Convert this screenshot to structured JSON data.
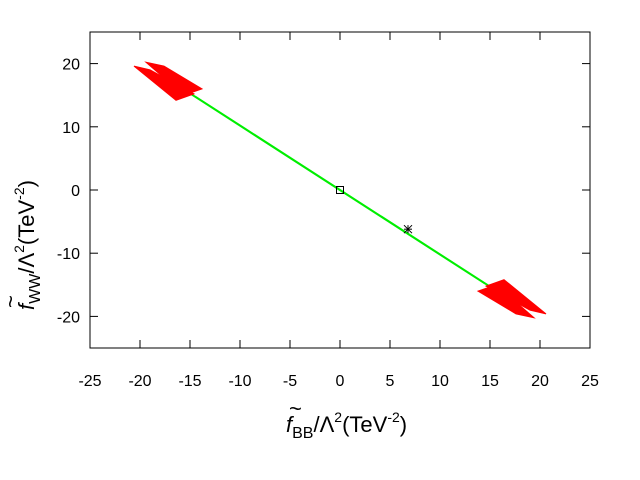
{
  "chart_data": {
    "type": "scatter",
    "xlabel": {
      "prefix": "f",
      "sub": "BB",
      "mid": "/Λ",
      "sup": "2",
      "units": "(TeV",
      "units_sup": "-2",
      "units_end": ")"
    },
    "ylabel": {
      "prefix": "f",
      "sub": "WW",
      "mid": "/Λ",
      "sup": "2",
      "units": "(TeV",
      "units_sup": "-2",
      "units_end": ")"
    },
    "xlim": [
      -25,
      25
    ],
    "ylim": [
      -25,
      25
    ],
    "xticks": [
      -25,
      -20,
      -15,
      -10,
      -5,
      0,
      5,
      10,
      15,
      20,
      25
    ],
    "yticks": [
      -20,
      -10,
      0,
      10,
      20
    ],
    "xtick_labels": [
      "-25",
      "-20",
      "-15",
      "-10",
      "-5",
      "0",
      "5",
      "10",
      "15",
      "20",
      "25"
    ],
    "ytick_labels": [
      "-20",
      "-10",
      "0",
      "10",
      "20"
    ],
    "grid": false,
    "regions": [
      {
        "color": "#00ee00",
        "polygon": [
          [
            -15.6,
            15.8
          ],
          [
            -14.4,
            14.8
          ],
          [
            15.6,
            -15.8
          ],
          [
            14.4,
            -14.8
          ]
        ],
        "order": [
          0,
          1,
          2,
          3
        ]
      },
      {
        "color": "#ff0000",
        "polygon": [
          [
            -20.6,
            19.6
          ],
          [
            -19.0,
            19.0
          ],
          [
            -14.6,
            15.2
          ],
          [
            -16.4,
            14.2
          ]
        ],
        "order": [
          0,
          1,
          2,
          3
        ]
      },
      {
        "color": "#ff0000",
        "polygon": [
          [
            -19.4,
            20.2
          ],
          [
            -17.6,
            19.6
          ],
          [
            -13.8,
            16.0
          ],
          [
            -15.6,
            15.0
          ]
        ],
        "order": [
          0,
          1,
          2,
          3
        ]
      },
      {
        "color": "#ff0000",
        "polygon": [
          [
            20.6,
            -19.6
          ],
          [
            19.0,
            -19.0
          ],
          [
            14.6,
            -15.2
          ],
          [
            16.4,
            -14.2
          ]
        ],
        "order": [
          0,
          1,
          2,
          3
        ]
      },
      {
        "color": "#ff0000",
        "polygon": [
          [
            19.4,
            -20.2
          ],
          [
            17.6,
            -19.6
          ],
          [
            13.8,
            -16.0
          ],
          [
            15.6,
            -15.0
          ]
        ],
        "order": [
          0,
          1,
          2,
          3
        ]
      }
    ],
    "markers": [
      {
        "shape": "square",
        "x": 0,
        "y": 0
      },
      {
        "shape": "star",
        "x": 6.8,
        "y": -6.2
      }
    ]
  }
}
